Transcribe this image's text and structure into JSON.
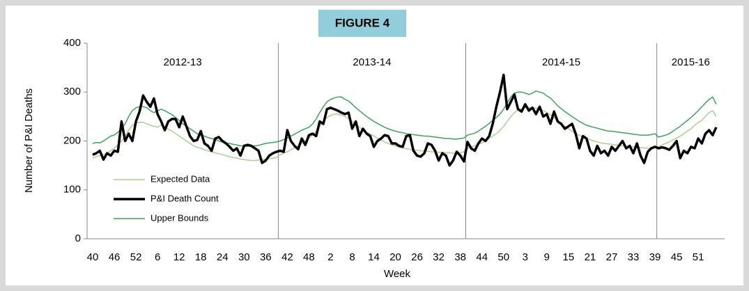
{
  "chart_data": {
    "type": "line",
    "title": "FIGURE 4",
    "x_label": "Week",
    "y_label": "Number of P&I Deaths",
    "annotations": [
      "2012-13",
      "2013-14",
      "2014-15",
      "2015-16"
    ],
    "ylim": [
      0,
      400
    ],
    "yticks": [
      0,
      100,
      200,
      300,
      400
    ],
    "legend": "lower left",
    "categories": [
      "40",
      null,
      null,
      null,
      null,
      null,
      "46",
      null,
      null,
      null,
      null,
      null,
      "52",
      null,
      null,
      null,
      null,
      null,
      "6",
      null,
      null,
      null,
      null,
      null,
      "12",
      null,
      null,
      null,
      null,
      null,
      "18",
      null,
      null,
      null,
      null,
      null,
      "24",
      null,
      null,
      null,
      null,
      null,
      "30",
      null,
      null,
      null,
      null,
      null,
      "36",
      null,
      null,
      null,
      null,
      null,
      "42",
      null,
      null,
      null,
      null,
      null,
      "48",
      null,
      null,
      null,
      null,
      null,
      "2",
      null,
      null,
      null,
      null,
      null,
      "8",
      null,
      null,
      null,
      null,
      null,
      "14",
      null,
      null,
      null,
      null,
      null,
      "20",
      null,
      null,
      null,
      null,
      null,
      "26",
      null,
      null,
      null,
      null,
      null,
      "32",
      null,
      null,
      null,
      null,
      null,
      "38",
      null,
      null,
      null,
      null,
      null,
      "44",
      null,
      null,
      null,
      null,
      null,
      "50",
      null,
      null,
      null,
      null,
      null,
      "3",
      null,
      null,
      null,
      null,
      null,
      "9",
      null,
      null,
      null,
      null,
      null,
      "15",
      null,
      null,
      null,
      null,
      null,
      "21",
      null,
      null,
      null,
      null,
      null,
      "27",
      null,
      null,
      null,
      null,
      null,
      "33",
      null,
      null,
      null,
      null,
      null,
      "39",
      null,
      null,
      null,
      null,
      null,
      "45",
      null,
      null,
      null,
      null,
      null,
      "51",
      null,
      null,
      null,
      null,
      null
    ],
    "series": [
      {
        "name": "Expected Data",
        "color": "#a9d18e",
        "width": 1.5,
        "values": [
          165,
          168,
          170,
          172,
          175,
          180,
          185,
          192,
          200,
          210,
          222,
          232,
          237,
          238,
          238,
          235,
          232,
          230,
          228,
          232,
          228,
          224,
          220,
          215,
          210,
          205,
          200,
          195,
          190,
          187,
          185,
          182,
          180,
          178,
          176,
          174,
          172,
          170,
          168,
          166,
          165,
          163,
          162,
          161,
          160,
          160,
          161,
          162,
          163,
          164,
          165,
          166,
          172,
          175,
          178,
          182,
          186,
          190,
          195,
          200,
          206,
          212,
          220,
          230,
          240,
          248,
          252,
          255,
          255,
          253,
          250,
          246,
          240,
          234,
          228,
          222,
          218,
          214,
          210,
          206,
          202,
          198,
          195,
          192,
          190,
          188,
          186,
          184,
          183,
          182,
          181,
          180,
          180,
          179,
          178,
          178,
          177,
          177,
          176,
          176,
          175,
          175,
          176,
          178,
          185,
          188,
          190,
          193,
          196,
          200,
          205,
          210,
          215,
          222,
          230,
          240,
          250,
          258,
          263,
          266,
          268,
          268,
          268,
          267,
          265,
          262,
          258,
          253,
          248,
          242,
          236,
          230,
          225,
          220,
          215,
          212,
          208,
          205,
          203,
          200,
          198,
          196,
          195,
          194,
          193,
          192,
          191,
          190,
          189,
          188,
          188,
          187,
          186,
          186,
          185,
          186,
          188,
          188,
          192,
          195,
          198,
          202,
          206,
          210,
          215,
          220,
          225,
          232,
          238,
          242,
          250,
          258,
          262,
          250
        ]
      },
      {
        "name": "P&I Death Count",
        "color": "#000000",
        "width": 3.5,
        "values": [
          172,
          175,
          180,
          162,
          175,
          170,
          180,
          178,
          240,
          200,
          215,
          200,
          240,
          260,
          293,
          280,
          270,
          287,
          255,
          240,
          222,
          240,
          245,
          245,
          228,
          250,
          230,
          210,
          200,
          202,
          220,
          195,
          190,
          180,
          205,
          208,
          200,
          195,
          188,
          180,
          185,
          170,
          190,
          192,
          190,
          185,
          180,
          155,
          160,
          170,
          175,
          178,
          180,
          178,
          222,
          200,
          190,
          183,
          205,
          192,
          212,
          215,
          210,
          240,
          235,
          265,
          268,
          265,
          262,
          258,
          255,
          258,
          225,
          240,
          210,
          225,
          215,
          210,
          188,
          200,
          205,
          212,
          210,
          195,
          195,
          190,
          188,
          210,
          212,
          180,
          170,
          168,
          175,
          195,
          192,
          180,
          160,
          175,
          170,
          150,
          160,
          178,
          170,
          158,
          198,
          185,
          180,
          195,
          205,
          200,
          210,
          235,
          270,
          300,
          335,
          265,
          280,
          295,
          265,
          260,
          275,
          262,
          268,
          255,
          270,
          250,
          255,
          235,
          260,
          240,
          235,
          225,
          230,
          235,
          215,
          185,
          210,
          205,
          180,
          170,
          190,
          175,
          180,
          170,
          188,
          180,
          190,
          200,
          185,
          190,
          175,
          195,
          170,
          155,
          178,
          185,
          188,
          185,
          187,
          185,
          182,
          190,
          200,
          165,
          180,
          175,
          188,
          185,
          205,
          195,
          215,
          222,
          212,
          228
        ]
      },
      {
        "name": "Upper Bounds",
        "color": "#3fa35a",
        "width": 1.5,
        "values": [
          195,
          197,
          196,
          200,
          205,
          210,
          212,
          218,
          225,
          235,
          250,
          262,
          268,
          270,
          270,
          268,
          262,
          258,
          262,
          265,
          262,
          258,
          254,
          248,
          242,
          235,
          230,
          225,
          220,
          215,
          212,
          210,
          207,
          205,
          203,
          200,
          198,
          196,
          195,
          193,
          192,
          190,
          190,
          189,
          190,
          190,
          191,
          193,
          195,
          196,
          197,
          198,
          200,
          203,
          206,
          210,
          214,
          218,
          222,
          225,
          228,
          235,
          245,
          258,
          270,
          280,
          285,
          288,
          290,
          290,
          285,
          282,
          275,
          268,
          262,
          256,
          250,
          245,
          240,
          236,
          232,
          228,
          225,
          222,
          220,
          218,
          217,
          215,
          214,
          213,
          212,
          211,
          210,
          210,
          209,
          208,
          207,
          206,
          205,
          205,
          204,
          204,
          205,
          206,
          212,
          214,
          216,
          220,
          225,
          230,
          236,
          242,
          248,
          255,
          265,
          278,
          290,
          298,
          300,
          300,
          298,
          295,
          298,
          302,
          300,
          298,
          292,
          288,
          280,
          272,
          266,
          260,
          255,
          250,
          245,
          240,
          236,
          232,
          230,
          228,
          226,
          224,
          222,
          220,
          220,
          219,
          218,
          217,
          216,
          215,
          214,
          213,
          212,
          212,
          212,
          213,
          215,
          208,
          210,
          212,
          215,
          220,
          225,
          230,
          236,
          242,
          248,
          255,
          262,
          270,
          278,
          285,
          290,
          275
        ]
      }
    ]
  }
}
